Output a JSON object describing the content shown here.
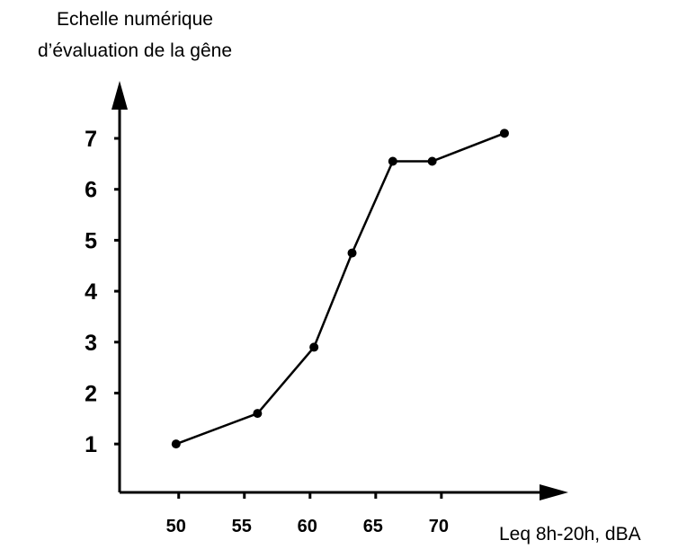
{
  "chart_data": {
    "type": "line",
    "ylabel_lines": [
      "Echelle numérique",
      "d’évaluation de la gêne"
    ],
    "xlabel": "Leq 8h-20h, dBA",
    "x_ticks": [
      50,
      55,
      60,
      65,
      70
    ],
    "y_ticks": [
      1,
      2,
      3,
      4,
      5,
      6,
      7
    ],
    "xlim": [
      45.5,
      78.5
    ],
    "ylim": [
      0.05,
      7.6
    ],
    "series": [
      {
        "x": [
          49.8,
          56.0,
          60.3,
          63.2,
          66.3,
          69.3,
          74.8
        ],
        "y": [
          1.0,
          1.6,
          2.9,
          4.75,
          6.55,
          6.55,
          7.1
        ]
      }
    ],
    "color": "#000000"
  }
}
